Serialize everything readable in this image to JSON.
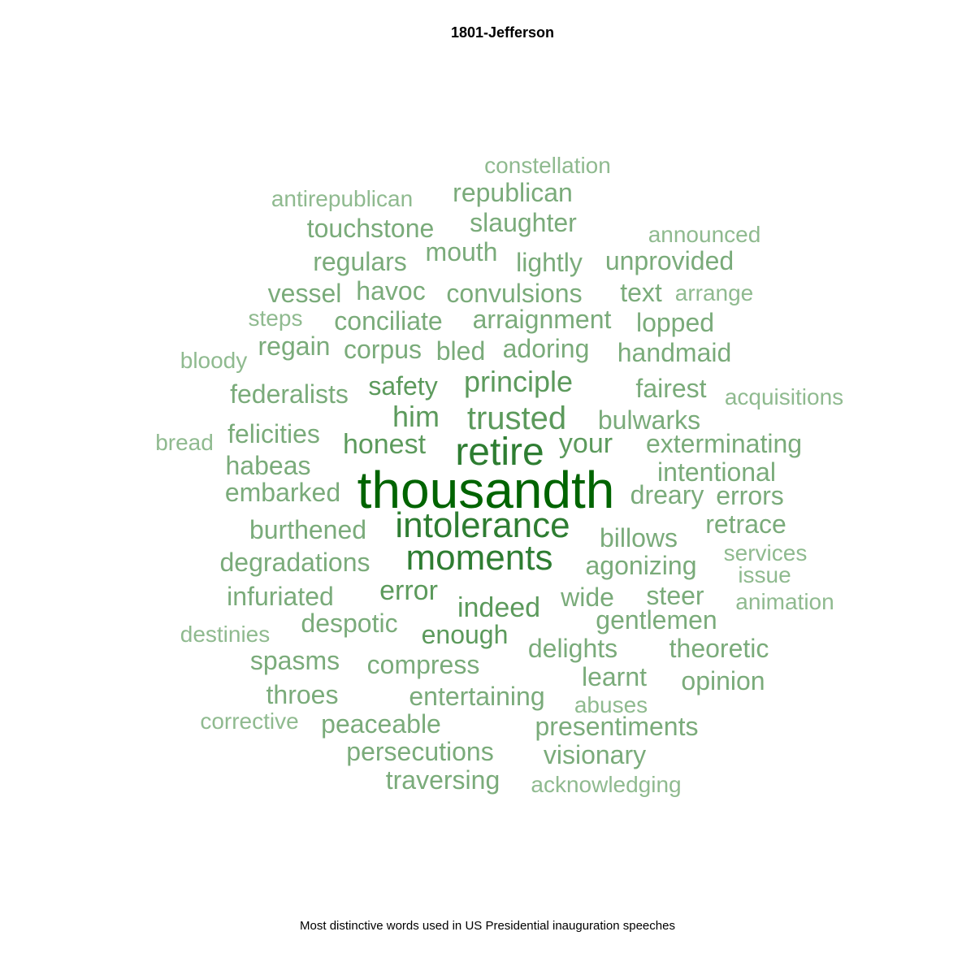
{
  "chart_data": {
    "type": "wordcloud",
    "title": "1801-Jefferson",
    "caption": "Most distinctive words used in US Presidential inauguration speeches",
    "colors": [
      "#006400",
      "#2e7d32",
      "#5c9a5c",
      "#7aab7a",
      "#8fba8f"
    ],
    "words": [
      {
        "text": "thousandth",
        "weight": 100
      },
      {
        "text": "retire",
        "weight": 78
      },
      {
        "text": "intolerance",
        "weight": 72
      },
      {
        "text": "moments",
        "weight": 72
      },
      {
        "text": "trusted",
        "weight": 62
      },
      {
        "text": "principle",
        "weight": 56
      },
      {
        "text": "him",
        "weight": 54
      },
      {
        "text": "honest",
        "weight": 50
      },
      {
        "text": "indeed",
        "weight": 50
      },
      {
        "text": "your",
        "weight": 50
      },
      {
        "text": "error",
        "weight": 50
      },
      {
        "text": "safety",
        "weight": 48
      },
      {
        "text": "enough",
        "weight": 48
      },
      {
        "text": "republican",
        "weight": 44
      },
      {
        "text": "touchstone",
        "weight": 44
      },
      {
        "text": "slaughter",
        "weight": 44
      },
      {
        "text": "mouth",
        "weight": 44
      },
      {
        "text": "regulars",
        "weight": 44
      },
      {
        "text": "lightly",
        "weight": 44
      },
      {
        "text": "unprovided",
        "weight": 44
      },
      {
        "text": "vessel",
        "weight": 44
      },
      {
        "text": "havoc",
        "weight": 44
      },
      {
        "text": "convulsions",
        "weight": 44
      },
      {
        "text": "text",
        "weight": 44
      },
      {
        "text": "conciliate",
        "weight": 44
      },
      {
        "text": "arraignment",
        "weight": 44
      },
      {
        "text": "lopped",
        "weight": 44
      },
      {
        "text": "regain",
        "weight": 44
      },
      {
        "text": "corpus",
        "weight": 44
      },
      {
        "text": "bled",
        "weight": 44
      },
      {
        "text": "adoring",
        "weight": 44
      },
      {
        "text": "handmaid",
        "weight": 44
      },
      {
        "text": "federalists",
        "weight": 44
      },
      {
        "text": "fairest",
        "weight": 44
      },
      {
        "text": "felicities",
        "weight": 44
      },
      {
        "text": "bulwarks",
        "weight": 44
      },
      {
        "text": "exterminating",
        "weight": 44
      },
      {
        "text": "habeas",
        "weight": 44
      },
      {
        "text": "intentional",
        "weight": 44
      },
      {
        "text": "embarked",
        "weight": 44
      },
      {
        "text": "dreary",
        "weight": 44
      },
      {
        "text": "errors",
        "weight": 44
      },
      {
        "text": "burthened",
        "weight": 44
      },
      {
        "text": "retrace",
        "weight": 44
      },
      {
        "text": "billows",
        "weight": 44
      },
      {
        "text": "degradations",
        "weight": 44
      },
      {
        "text": "agonizing",
        "weight": 44
      },
      {
        "text": "infuriated",
        "weight": 44
      },
      {
        "text": "wide",
        "weight": 44
      },
      {
        "text": "steer",
        "weight": 44
      },
      {
        "text": "despotic",
        "weight": 44
      },
      {
        "text": "gentlemen",
        "weight": 44
      },
      {
        "text": "delights",
        "weight": 44
      },
      {
        "text": "theoretic",
        "weight": 44
      },
      {
        "text": "spasms",
        "weight": 44
      },
      {
        "text": "compress",
        "weight": 44
      },
      {
        "text": "learnt",
        "weight": 44
      },
      {
        "text": "opinion",
        "weight": 44
      },
      {
        "text": "throes",
        "weight": 44
      },
      {
        "text": "entertaining",
        "weight": 44
      },
      {
        "text": "peaceable",
        "weight": 44
      },
      {
        "text": "presentiments",
        "weight": 44
      },
      {
        "text": "persecutions",
        "weight": 44
      },
      {
        "text": "visionary",
        "weight": 44
      },
      {
        "text": "traversing",
        "weight": 44
      },
      {
        "text": "constellation",
        "weight": 38
      },
      {
        "text": "antirepublican",
        "weight": 38
      },
      {
        "text": "announced",
        "weight": 38
      },
      {
        "text": "arrange",
        "weight": 38
      },
      {
        "text": "steps",
        "weight": 38
      },
      {
        "text": "bloody",
        "weight": 38
      },
      {
        "text": "acquisitions",
        "weight": 38
      },
      {
        "text": "bread",
        "weight": 38
      },
      {
        "text": "services",
        "weight": 38
      },
      {
        "text": "issue",
        "weight": 38
      },
      {
        "text": "animation",
        "weight": 38
      },
      {
        "text": "destinies",
        "weight": 38
      },
      {
        "text": "abuses",
        "weight": 38
      },
      {
        "text": "corrective",
        "weight": 38
      },
      {
        "text": "acknowledging",
        "weight": 38
      }
    ]
  }
}
